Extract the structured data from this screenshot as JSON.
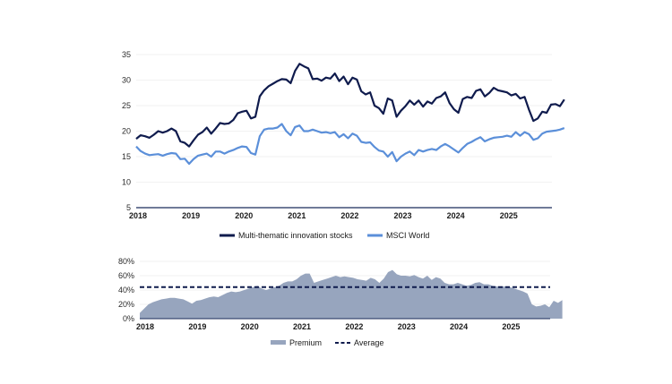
{
  "colors": {
    "thematic": "#0f1b4d",
    "msci": "#5b8fd9",
    "premium": "#97a5be",
    "average": "#0f1b4d",
    "axis": "#1a2a5a"
  },
  "chart_data": [
    {
      "type": "line",
      "title": "",
      "x_labels": [
        "2018",
        "2019",
        "2020",
        "2021",
        "2022",
        "2023",
        "2024",
        "2025"
      ],
      "x_start": 2018.0,
      "x_step": 0.0833333,
      "xlim": [
        2018.0,
        2025.85
      ],
      "ylim": [
        5,
        35
      ],
      "y_ticks": [
        "5",
        "10",
        "15",
        "20",
        "25",
        "30",
        "35"
      ],
      "y_tick_values": [
        5,
        10,
        15,
        20,
        25,
        30,
        35
      ],
      "gridlines": true,
      "legend": "bottom",
      "series": [
        {
          "name": "Multi-thematic innovation stocks",
          "values": [
            18.5,
            19.2,
            19.0,
            18.7,
            19.3,
            20.0,
            19.7,
            20.0,
            20.5,
            20.0,
            18.0,
            17.7,
            17.0,
            18.2,
            19.3,
            19.8,
            20.7,
            19.5,
            20.5,
            21.6,
            21.4,
            21.5,
            22.2,
            23.5,
            23.8,
            24.0,
            22.5,
            22.8,
            26.8,
            28.0,
            28.8,
            29.3,
            29.8,
            30.2,
            30.1,
            29.4,
            31.8,
            33.2,
            32.7,
            32.3,
            30.2,
            30.3,
            29.9,
            30.5,
            30.3,
            31.3,
            29.8,
            30.7,
            29.2,
            30.5,
            30.1,
            27.8,
            27.2,
            27.6,
            25.0,
            24.5,
            23.4,
            26.4,
            26.0,
            22.8,
            24.0,
            24.9,
            26.0,
            25.2,
            26.0,
            24.8,
            25.8,
            25.4,
            26.5,
            26.8,
            27.6,
            25.5,
            24.3,
            23.6,
            26.3,
            26.7,
            26.5,
            27.9,
            28.2,
            26.8,
            27.5,
            28.5,
            28.0,
            27.8,
            27.6,
            27.0,
            27.3,
            26.4,
            26.7,
            24.2,
            22.0,
            22.5,
            23.8,
            23.6,
            25.2,
            25.3,
            24.9,
            26.2
          ]
        },
        {
          "name": "MSCI World",
          "values": [
            17.0,
            16.1,
            15.6,
            15.3,
            15.4,
            15.5,
            15.2,
            15.5,
            15.7,
            15.6,
            14.5,
            14.6,
            13.6,
            14.5,
            15.2,
            15.4,
            15.6,
            15.0,
            16.0,
            16.0,
            15.6,
            16.0,
            16.3,
            16.7,
            17.0,
            16.9,
            15.7,
            15.4,
            19.0,
            20.3,
            20.5,
            20.5,
            20.7,
            21.4,
            20.0,
            19.2,
            20.8,
            21.1,
            20.0,
            20.0,
            20.3,
            20.0,
            19.7,
            19.8,
            19.6,
            19.8,
            18.8,
            19.4,
            18.6,
            19.5,
            19.1,
            17.9,
            17.7,
            17.8,
            16.9,
            16.2,
            16.0,
            15.0,
            15.9,
            14.1,
            15.0,
            15.6,
            16.0,
            15.3,
            16.3,
            16.0,
            16.3,
            16.5,
            16.3,
            17.0,
            17.5,
            17.0,
            16.4,
            15.8,
            16.7,
            17.5,
            17.9,
            18.4,
            18.8,
            18.0,
            18.4,
            18.7,
            18.8,
            18.9,
            19.1,
            18.9,
            19.8,
            19.1,
            19.8,
            19.4,
            18.3,
            18.6,
            19.5,
            19.9,
            20.0,
            20.1,
            20.3,
            20.6
          ]
        }
      ]
    },
    {
      "type": "area",
      "title": "",
      "x_labels": [
        "2018",
        "2019",
        "2020",
        "2021",
        "2022",
        "2023",
        "2024",
        "2025"
      ],
      "x_start": 2018.0,
      "x_step": 0.0833333,
      "xlim": [
        2018.0,
        2025.85
      ],
      "ylim": [
        0,
        80
      ],
      "y_ticks": [
        "0%",
        "20%",
        "40%",
        "60%",
        "80%"
      ],
      "y_tick_values": [
        0,
        20,
        40,
        60,
        80
      ],
      "gridlines": true,
      "legend": "bottom",
      "series": [
        {
          "name": "Premium",
          "values": [
            8,
            14,
            20,
            23,
            25,
            27,
            28,
            29,
            29,
            28,
            27,
            24,
            21,
            25,
            26,
            28,
            30,
            31,
            30,
            33,
            36,
            38,
            37,
            38,
            40,
            42,
            44,
            46,
            42,
            40,
            42,
            44,
            46,
            50,
            52,
            52,
            55,
            60,
            63,
            63,
            50,
            52,
            54,
            56,
            58,
            60,
            58,
            59,
            58,
            57,
            55,
            54,
            53,
            57,
            55,
            50,
            56,
            65,
            68,
            62,
            60,
            60,
            59,
            61,
            58,
            56,
            60,
            54,
            58,
            56,
            50,
            48,
            48,
            50,
            48,
            46,
            47,
            50,
            51,
            48,
            48,
            46,
            45,
            45,
            45,
            44,
            42,
            40,
            38,
            35,
            20,
            17,
            18,
            20,
            16,
            25,
            22,
            26
          ]
        },
        {
          "name": "Average",
          "values": [
            44
          ]
        }
      ]
    }
  ]
}
